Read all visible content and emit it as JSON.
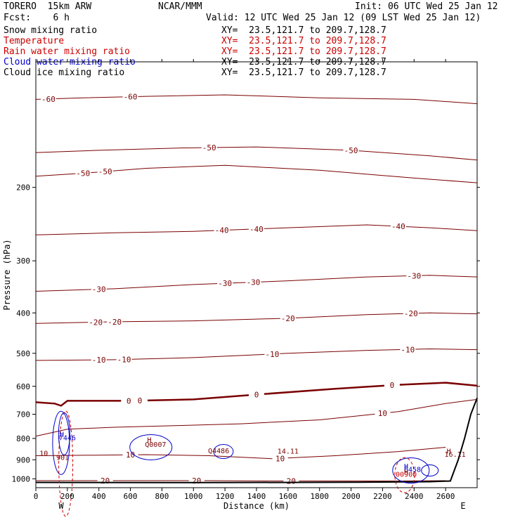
{
  "header": {
    "model": "TORERO  15km ARW",
    "center": "NCAR/MMM",
    "init": "Init: 06 UTC Wed 25 Jan 12",
    "fcst": "Fcst:    6 h",
    "valid": "Valid: 12 UTC Wed 25 Jan 12 (09 LST Wed 25 Jan 12)"
  },
  "fields": [
    {
      "label": "Snow mixing ratio",
      "xy": "XY=  23.5,121.7 to 209.7,128.7",
      "color": "#000000",
      "xy_color": "#000000"
    },
    {
      "label": "Temperature",
      "xy": "XY=  23.5,121.7 to 209.7,128.7",
      "color": "#cc0000",
      "xy_color": "#cc0000"
    },
    {
      "label": "Rain water mixing ratio",
      "xy": "XY=  23.5,121.7 to 209.7,128.7",
      "color": "#cc0000",
      "xy_color": "#cc0000"
    },
    {
      "label": "Cloud water mixing ratio",
      "xy": "XY=  23.5,121.7 to 209.7,128.7",
      "color": "#0000cc",
      "xy_color": "#000000"
    },
    {
      "label": "Cloud ice mixing ratio",
      "xy": "XY=  23.5,121.7 to 209.7,128.7",
      "color": "#000000",
      "xy_color": "#000000"
    }
  ],
  "chart_data": {
    "type": "contour",
    "xlabel": "Distance (km)",
    "ylabel": "Pressure (hPa)",
    "xlim": [
      0,
      2800
    ],
    "ylim": [
      100,
      1050
    ],
    "y_scale": "log",
    "x_ticks": [
      0,
      200,
      400,
      600,
      800,
      1000,
      1200,
      1400,
      1600,
      1800,
      2000,
      2200,
      2400,
      2600
    ],
    "y_ticks": [
      200,
      300,
      400,
      500,
      600,
      700,
      800,
      900,
      1000
    ],
    "end_labels": {
      "left": "W",
      "right": "E"
    },
    "temperature_color": "#7a0000",
    "temperature_contours": [
      {
        "value": -60,
        "points": [
          [
            0,
            123
          ],
          [
            300,
            122
          ],
          [
            700,
            121
          ],
          [
            1200,
            120
          ],
          [
            1800,
            122
          ],
          [
            2400,
            123
          ],
          [
            2800,
            126
          ]
        ],
        "labels": [
          [
            80,
            -60
          ],
          [
            600,
            -60
          ]
        ]
      },
      {
        "value": -50,
        "points": [
          [
            0,
            165
          ],
          [
            400,
            163
          ],
          [
            900,
            161
          ],
          [
            1400,
            160
          ],
          [
            2000,
            163
          ],
          [
            2500,
            168
          ],
          [
            2800,
            172
          ]
        ],
        "labels": [
          [
            1100,
            -50
          ],
          [
            2000,
            -50
          ]
        ]
      },
      {
        "value": -50,
        "points": [
          [
            0,
            188
          ],
          [
            300,
            185
          ],
          [
            700,
            180
          ],
          [
            1200,
            177
          ],
          [
            1800,
            182
          ],
          [
            2400,
            190
          ],
          [
            2800,
            195
          ]
        ],
        "labels": [
          [
            300,
            -50
          ],
          [
            440,
            -50
          ]
        ]
      },
      {
        "value": -40,
        "points": [
          [
            0,
            260
          ],
          [
            500,
            257
          ],
          [
            1000,
            255
          ],
          [
            1600,
            250
          ],
          [
            2100,
            246
          ],
          [
            2500,
            250
          ],
          [
            2800,
            254
          ]
        ],
        "labels": [
          [
            1180,
            -40
          ],
          [
            1400,
            -40
          ],
          [
            2300,
            -40
          ]
        ]
      },
      {
        "value": -30,
        "points": [
          [
            0,
            355
          ],
          [
            500,
            350
          ],
          [
            1000,
            342
          ],
          [
            1600,
            335
          ],
          [
            2100,
            328
          ],
          [
            2500,
            325
          ],
          [
            2800,
            328
          ]
        ],
        "labels": [
          [
            400,
            -30
          ],
          [
            1200,
            -30
          ],
          [
            1380,
            -30
          ],
          [
            2400,
            -30
          ]
        ]
      },
      {
        "value": -20,
        "points": [
          [
            0,
            424
          ],
          [
            500,
            420
          ],
          [
            1000,
            418
          ],
          [
            1600,
            412
          ],
          [
            2100,
            404
          ],
          [
            2500,
            400
          ],
          [
            2800,
            402
          ]
        ],
        "labels": [
          [
            380,
            -20
          ],
          [
            500,
            -20
          ],
          [
            1600,
            -20
          ],
          [
            2380,
            -20
          ]
        ]
      },
      {
        "value": -10,
        "points": [
          [
            0,
            520
          ],
          [
            500,
            518
          ],
          [
            1000,
            512
          ],
          [
            1600,
            500
          ],
          [
            2100,
            492
          ],
          [
            2500,
            488
          ],
          [
            2800,
            490
          ]
        ],
        "labels": [
          [
            400,
            -10
          ],
          [
            560,
            -10
          ],
          [
            1500,
            -10
          ],
          [
            2360,
            -10
          ]
        ]
      },
      {
        "value": 0,
        "points": [
          [
            0,
            655
          ],
          [
            120,
            660
          ],
          [
            160,
            668
          ],
          [
            200,
            650
          ],
          [
            600,
            650
          ],
          [
            1000,
            645
          ],
          [
            1400,
            628
          ],
          [
            1900,
            608
          ],
          [
            2300,
            595
          ],
          [
            2600,
            588
          ],
          [
            2800,
            598
          ]
        ],
        "labels": [
          [
            590,
            0
          ],
          [
            660,
            0
          ],
          [
            1400,
            0
          ],
          [
            2260,
            0
          ]
        ],
        "bold": true
      },
      {
        "value": 10,
        "points": [
          [
            0,
            790
          ],
          [
            200,
            760
          ],
          [
            500,
            752
          ],
          [
            900,
            745
          ],
          [
            1300,
            738
          ],
          [
            1800,
            722
          ],
          [
            2300,
            690
          ],
          [
            2600,
            660
          ],
          [
            2800,
            645
          ]
        ],
        "labels": [
          [
            2200,
            10
          ]
        ]
      },
      {
        "value": 10,
        "points": [
          [
            0,
            880
          ],
          [
            300,
            878
          ],
          [
            700,
            875
          ],
          [
            1100,
            880
          ],
          [
            1500,
            895
          ],
          [
            1900,
            880
          ],
          [
            2300,
            860
          ],
          [
            2600,
            840
          ]
        ],
        "labels": [
          [
            600,
            10
          ],
          [
            1550,
            10
          ]
        ]
      },
      {
        "value": 20,
        "points": [
          [
            0,
            1010
          ],
          [
            300,
            1010
          ],
          [
            700,
            1010
          ],
          [
            1100,
            1010
          ],
          [
            1500,
            1012
          ],
          [
            1900,
            1012
          ],
          [
            2300,
            1012
          ],
          [
            2600,
            1010
          ]
        ],
        "labels": [
          [
            440,
            20
          ],
          [
            1020,
            20
          ],
          [
            1620,
            20
          ]
        ]
      }
    ],
    "annotations": [
      {
        "text": "H",
        "x": 165,
        "y": 793,
        "color": "#0000cc"
      },
      {
        "text": "7446",
        "x": 200,
        "y": 808,
        "color": "#0000cc"
      },
      {
        "text": "H",
        "x": 720,
        "y": 818,
        "color": "#7a0000"
      },
      {
        "text": "14.11",
        "x": 1600,
        "y": 870,
        "color": "#7a0000"
      },
      {
        "text": "H",
        "x": 2620,
        "y": 870,
        "color": "#7a0000"
      },
      {
        "text": "16.11",
        "x": 2660,
        "y": 885,
        "color": "#7a0000"
      },
      {
        "text": "H",
        "x": 2350,
        "y": 945,
        "color": "#0000cc"
      },
      {
        "text": "6458",
        "x": 2390,
        "y": 962,
        "color": "#0000cc"
      },
      {
        "text": "H",
        "x": 2350,
        "y": 975,
        "color": "#7a0000"
      },
      {
        "text": "00900",
        "x": 2350,
        "y": 988,
        "color": "#cc0000"
      },
      {
        "text": "901",
        "x": 170,
        "y": 900,
        "color": "#7a0000"
      },
      {
        "text": "10",
        "x": 50,
        "y": 880,
        "color": "#7a0000"
      },
      {
        "text": "Q0007",
        "x": 760,
        "y": 838,
        "color": "#7a0000"
      },
      {
        "text": "Q4486",
        "x": 1160,
        "y": 868,
        "color": "#7a0000"
      }
    ]
  }
}
